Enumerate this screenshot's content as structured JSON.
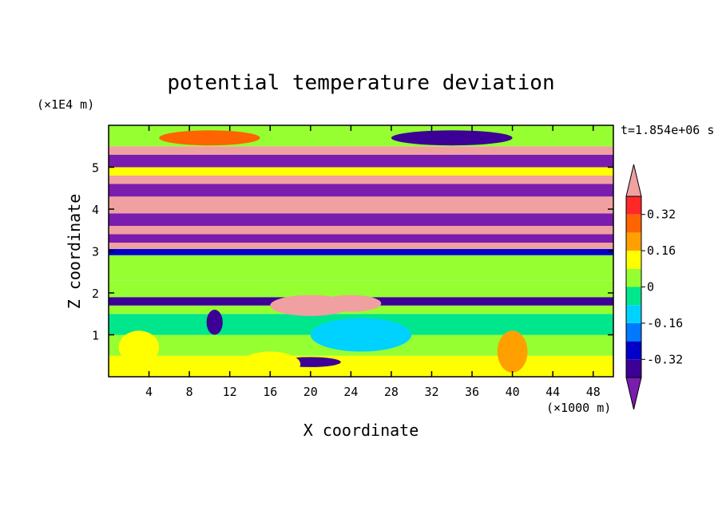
{
  "chart_data": {
    "type": "heatmap",
    "title": "potential temperature deviation",
    "xlabel": "X coordinate",
    "ylabel": "Z coordinate",
    "x_unit": "(×1000 m)",
    "y_unit": "(×1E4 m)",
    "time_label": "t=1.854e+06 s",
    "xlim": [
      0,
      50
    ],
    "ylim": [
      0,
      6
    ],
    "x_ticks": [
      4,
      8,
      12,
      16,
      20,
      24,
      28,
      32,
      36,
      40,
      44,
      48
    ],
    "y_ticks": [
      1,
      2,
      3,
      4,
      5
    ],
    "colorbar": {
      "levels": [
        -0.4,
        -0.32,
        -0.24,
        -0.16,
        -0.08,
        0,
        0.08,
        0.16,
        0.24,
        0.32,
        0.4
      ],
      "labels": [
        "0.32",
        "0.16",
        "0",
        "-0.16",
        "-0.32"
      ],
      "label_values": [
        0.32,
        0.16,
        0,
        -0.16,
        -0.32
      ],
      "colors": [
        "#7a1cae",
        "#3c0096",
        "#0000c8",
        "#0078ff",
        "#00d2ff",
        "#00e68c",
        "#96ff32",
        "#ffff00",
        "#ffa000",
        "#ff6400",
        "#ff2828",
        "#f0a0a0"
      ],
      "extend": "both"
    },
    "field_bands": [
      {
        "z": [
          0.0,
          0.5
        ],
        "value": 0.12
      },
      {
        "z": [
          0.5,
          1.0
        ],
        "value": 0.02
      },
      {
        "z": [
          1.0,
          1.5
        ],
        "value": -0.06
      },
      {
        "z": [
          1.5,
          1.7
        ],
        "value": 0.05
      },
      {
        "z": [
          1.7,
          1.9
        ],
        "value": -0.36
      },
      {
        "z": [
          1.9,
          2.3
        ],
        "value": 0.05
      },
      {
        "z": [
          2.3,
          2.9
        ],
        "value": 0.0
      },
      {
        "z": [
          2.9,
          3.05
        ],
        "value": -0.3
      },
      {
        "z": [
          3.05,
          3.2
        ],
        "value": 0.45
      },
      {
        "z": [
          3.2,
          3.4
        ],
        "value": -0.45
      },
      {
        "z": [
          3.4,
          3.6
        ],
        "value": 0.45
      },
      {
        "z": [
          3.6,
          3.9
        ],
        "value": -0.45
      },
      {
        "z": [
          3.9,
          4.3
        ],
        "value": 0.45
      },
      {
        "z": [
          4.3,
          4.6
        ],
        "value": -0.45
      },
      {
        "z": [
          4.6,
          4.8
        ],
        "value": 0.45
      },
      {
        "z": [
          4.8,
          5.0
        ],
        "value": 0.1
      },
      {
        "z": [
          5.0,
          5.3
        ],
        "value": -0.45
      },
      {
        "z": [
          5.3,
          5.5
        ],
        "value": 0.45
      },
      {
        "z": [
          5.5,
          6.0
        ],
        "value": 0.02
      }
    ],
    "field_blobs": [
      {
        "x": 10,
        "z": 5.7,
        "rx": 5,
        "rz": 0.18,
        "value": 0.3
      },
      {
        "x": 34,
        "z": 5.7,
        "rx": 6,
        "rz": 0.18,
        "value": -0.36
      },
      {
        "x": 20,
        "z": 1.7,
        "rx": 4,
        "rz": 0.25,
        "value": 0.45
      },
      {
        "x": 24,
        "z": 1.75,
        "rx": 3,
        "rz": 0.2,
        "value": 0.45
      },
      {
        "x": 10.5,
        "z": 1.3,
        "rx": 0.8,
        "rz": 0.3,
        "value": -0.36
      },
      {
        "x": 20,
        "z": 0.35,
        "rx": 3,
        "rz": 0.12,
        "value": -0.36
      },
      {
        "x": 25,
        "z": 1.0,
        "rx": 5,
        "rz": 0.4,
        "value": -0.12
      },
      {
        "x": 40,
        "z": 0.6,
        "rx": 1.5,
        "rz": 0.5,
        "value": 0.22
      },
      {
        "x": 3,
        "z": 0.7,
        "rx": 2,
        "rz": 0.4,
        "value": 0.12
      },
      {
        "x": 16,
        "z": 0.3,
        "rx": 3,
        "rz": 0.3,
        "value": 0.14
      }
    ]
  }
}
